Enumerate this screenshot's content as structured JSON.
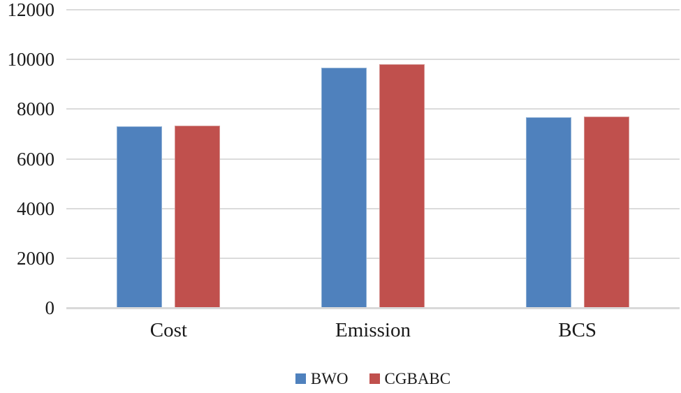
{
  "chart_data": {
    "type": "bar",
    "title": "",
    "xlabel": "",
    "ylabel": "",
    "categories": [
      "Cost",
      "Emission",
      "BCS"
    ],
    "series": [
      {
        "name": "BWO",
        "color": "#4F81BD",
        "border_color": "#8EB0D5",
        "values": [
          7310,
          9670,
          7670
        ]
      },
      {
        "name": "CGBABC",
        "color": "#C0504D",
        "border_color": "#D59391",
        "values": [
          7330,
          9810,
          7700
        ]
      }
    ],
    "ylim": [
      0,
      12000
    ],
    "ytick_step": 2000,
    "ytick_labels": [
      "0",
      "2000",
      "4000",
      "6000",
      "8000",
      "10000",
      "12000"
    ],
    "grid": true,
    "gridline_color": "#DBDBDB",
    "axis_line_color": "#D9D9D9",
    "text_color": "#1A1A1A",
    "legend": {
      "position": "bottom",
      "entries": [
        "BWO",
        "CGBABC"
      ]
    }
  }
}
